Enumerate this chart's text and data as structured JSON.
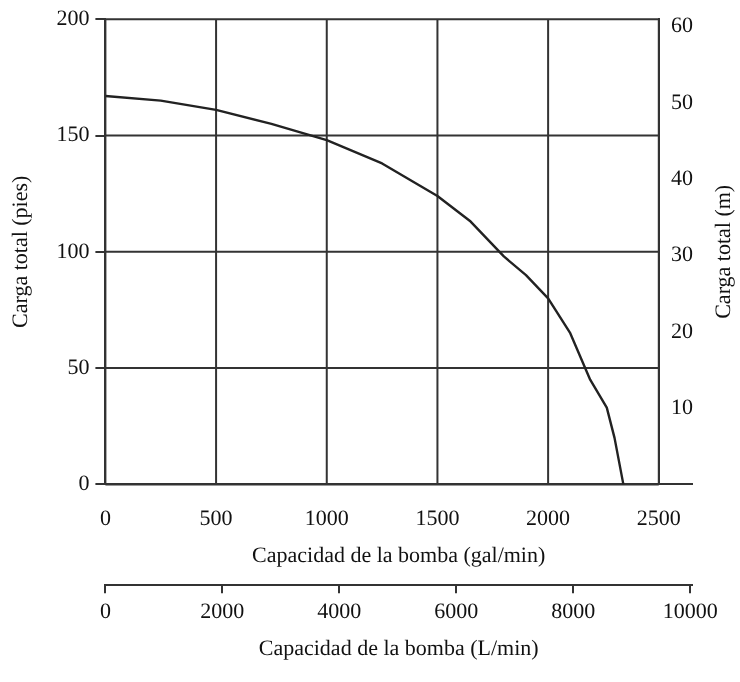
{
  "chart_data": {
    "type": "line",
    "xlabel": "Capacidad de la bomba (gal/min)",
    "ylabel": "Carga total (pies)",
    "y2label": "Carga total (m)",
    "x2label": "Capacidad de la bomba (L/min)",
    "series": [
      {
        "color": "#222222",
        "x": [
          0,
          250,
          500,
          750,
          1000,
          1250,
          1500,
          1650,
          1800,
          1900,
          2000,
          2100,
          2190,
          2265,
          2300,
          2340
        ],
        "values": [
          167,
          165,
          161,
          155,
          148,
          138,
          124,
          113,
          98,
          90,
          80,
          65,
          45,
          33,
          20,
          0
        ]
      }
    ],
    "xlim": [
      0,
      2650
    ],
    "xticks": [
      0,
      500,
      1000,
      1500,
      2000,
      2500
    ],
    "ylim": [
      0,
      200
    ],
    "yticks": [
      0,
      50,
      100,
      150,
      200
    ],
    "y2lim": [
      0,
      60.96
    ],
    "y2ticks": [
      10,
      20,
      30,
      40,
      50,
      60
    ],
    "x2lim": [
      0,
      10030
    ],
    "x2ticks": [
      0,
      2000,
      4000,
      6000,
      8000,
      10000
    ],
    "grid": true,
    "legend": false,
    "marker": "none",
    "line_style": "solid"
  }
}
